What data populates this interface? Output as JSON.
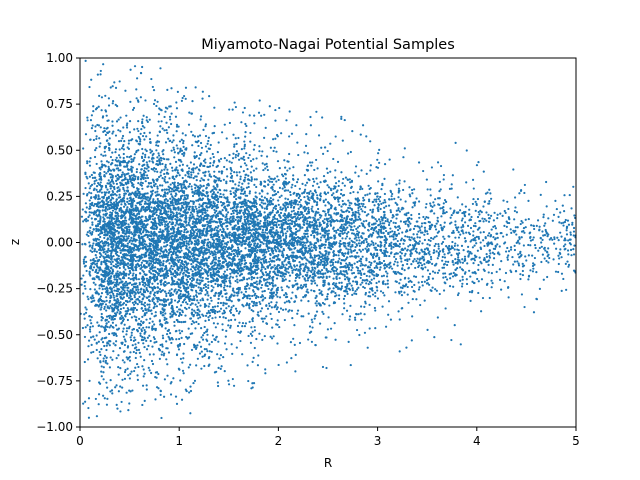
{
  "chart_data": {
    "type": "scatter",
    "title": "Miyamoto-Nagai Potential Samples",
    "xlabel": "R",
    "ylabel": "z",
    "xlim": [
      0,
      5
    ],
    "ylim": [
      -1.0,
      1.0
    ],
    "xticks": [
      "0",
      "1",
      "2",
      "3",
      "4",
      "5"
    ],
    "yticks": [
      "−1.00",
      "−0.75",
      "−0.50",
      "−0.25",
      "0.00",
      "0.25",
      "0.50",
      "0.75",
      "1.00"
    ],
    "grid": false,
    "legend": "none",
    "marker_color": "#1f77b4",
    "series": [
      {
        "x": [
          0.12,
          0.25,
          0.41,
          0.58,
          0.73,
          0.95,
          1.12,
          1.34,
          1.55,
          1.78,
          2.02,
          2.25,
          2.51,
          2.77,
          3.05,
          3.31,
          3.58,
          3.86,
          4.15,
          4.43,
          4.71,
          4.95,
          0.18,
          0.37,
          0.66,
          0.88,
          1.21,
          1.47,
          1.83,
          2.14,
          2.46,
          2.88,
          3.22,
          3.67,
          4.08,
          4.52,
          4.88,
          0.09,
          0.31,
          0.52,
          0.81,
          1.05,
          1.39,
          1.71,
          2.09,
          2.42,
          2.83,
          3.18,
          3.61,
          4.02,
          4.39,
          4.82
        ],
        "y": [
          0.62,
          -0.48,
          0.31,
          -0.72,
          0.44,
          -0.21,
          0.38,
          -0.35,
          0.27,
          -0.29,
          0.18,
          -0.24,
          0.15,
          -0.19,
          0.12,
          -0.14,
          0.09,
          -0.11,
          0.07,
          -0.08,
          0.05,
          -0.04,
          0.91,
          -0.88,
          0.77,
          -0.66,
          0.58,
          -0.51,
          0.47,
          -0.41,
          0.36,
          -0.33,
          0.28,
          -0.26,
          0.22,
          -0.2,
          0.17,
          -0.95,
          0.84,
          -0.7,
          0.63,
          -0.55,
          0.49,
          -0.43,
          0.39,
          -0.34,
          0.3,
          -0.27,
          0.24,
          -0.21,
          0.19,
          -0.16
        ]
      }
    ]
  }
}
